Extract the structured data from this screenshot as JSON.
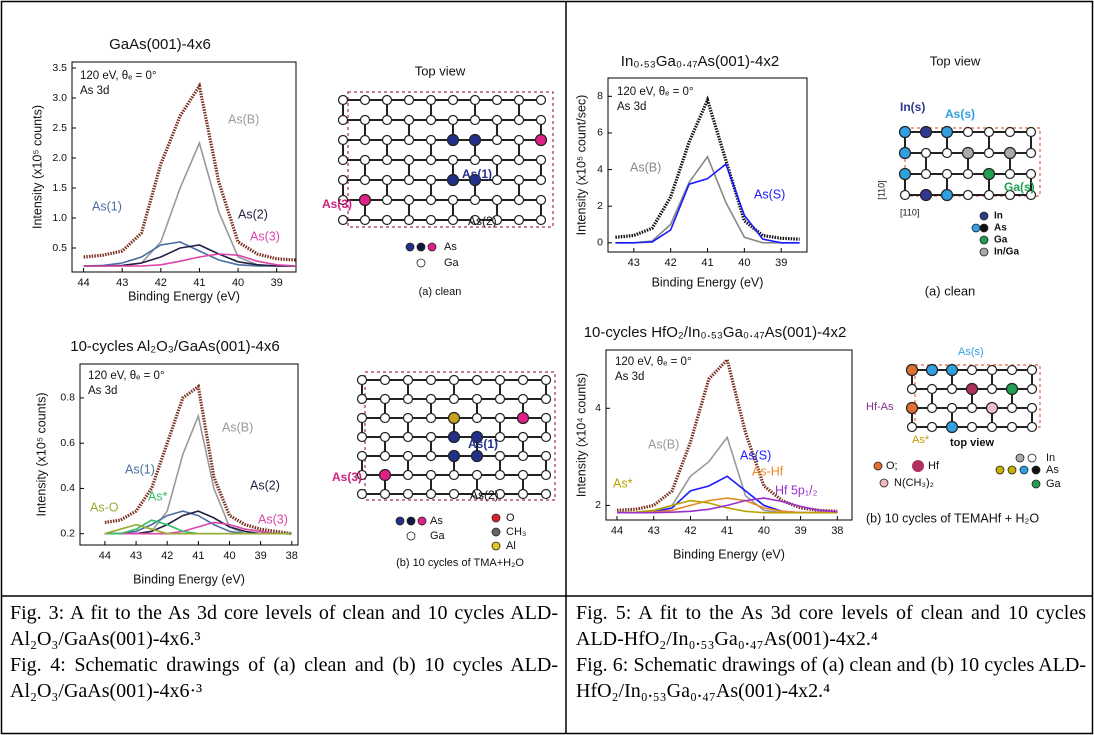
{
  "chart_data": [
    {
      "type": "line",
      "title": "GaAs(001)-4x6",
      "annotations": [
        "120 eV, θₑ = 0°",
        "As 3d"
      ],
      "x_label": "Binding Energy (eV)",
      "y_label": "Intensity (x10⁵ counts)",
      "xlim": [
        44.3,
        38.5
      ],
      "xticks": [
        44,
        43,
        42,
        41,
        40,
        39
      ],
      "ylim": [
        0.1,
        3.6
      ],
      "yticks": [
        0.5,
        {
          "value": 1,
          "label": "1.0"
        },
        1.5,
        {
          "value": 2,
          "label": "2.0"
        },
        2.5,
        {
          "value": 3,
          "label": "3.0"
        },
        3.5
      ],
      "x": [
        44,
        43.5,
        43,
        42.5,
        42,
        41.5,
        41,
        40.5,
        40,
        39.5,
        39,
        38.5
      ],
      "series": [
        {
          "color": "#7b2e1e",
          "values": [
            0.35,
            0.38,
            0.45,
            0.75,
            1.9,
            2.7,
            3.2,
            1.6,
            0.6,
            0.4,
            0.32,
            0.3
          ]
        },
        {
          "name": "As(B)",
          "color": "#999999",
          "values": [
            0.2,
            0.2,
            0.2,
            0.25,
            0.6,
            1.5,
            2.25,
            1.1,
            0.35,
            0.22,
            0.2,
            0.2
          ]
        },
        {
          "name": "As(1)",
          "color": "#4a6fa5",
          "values": [
            0.2,
            0.21,
            0.25,
            0.35,
            0.55,
            0.6,
            0.45,
            0.3,
            0.22,
            0.2,
            0.2,
            0.2
          ]
        },
        {
          "name": "As(2)",
          "color": "#222244",
          "values": [
            0.2,
            0.2,
            0.21,
            0.25,
            0.35,
            0.5,
            0.55,
            0.4,
            0.27,
            0.22,
            0.2,
            0.2
          ]
        },
        {
          "name": "As(3)",
          "color": "#dd44aa",
          "values": [
            0.2,
            0.2,
            0.2,
            0.2,
            0.22,
            0.28,
            0.35,
            0.4,
            0.38,
            0.28,
            0.22,
            0.2
          ]
        }
      ]
    },
    {
      "type": "line",
      "title": "10-cycles Al₂O₃/GaAs(001)-4x6",
      "annotations": [
        "120 eV, θₑ = 0°",
        "As 3d"
      ],
      "x_label": "Binding Energy (eV)",
      "y_label": "Intensity (x10⁵ counts)",
      "xlim": [
        44.8,
        37.8
      ],
      "xticks": [
        44,
        43,
        42,
        41,
        40,
        39,
        38
      ],
      "ylim": [
        0.15,
        0.95
      ],
      "yticks": [
        0.2,
        0.4,
        0.6,
        0.8
      ],
      "x": [
        44,
        43.5,
        43,
        42.5,
        42,
        41.5,
        41,
        40.5,
        40,
        39.5,
        39,
        38.5,
        38
      ],
      "series": [
        {
          "color": "#7b2e1e",
          "values": [
            0.25,
            0.26,
            0.3,
            0.4,
            0.6,
            0.8,
            0.85,
            0.45,
            0.28,
            0.24,
            0.22,
            0.21,
            0.2
          ]
        },
        {
          "name": "As(B)",
          "color": "#999999",
          "values": [
            0.2,
            0.2,
            0.2,
            0.21,
            0.3,
            0.55,
            0.72,
            0.4,
            0.23,
            0.2,
            0.2,
            0.2,
            0.2
          ]
        },
        {
          "name": "As(1)",
          "color": "#4a6fa5",
          "values": [
            0.2,
            0.2,
            0.21,
            0.24,
            0.28,
            0.3,
            0.28,
            0.24,
            0.21,
            0.2,
            0.2,
            0.2,
            0.2
          ]
        },
        {
          "name": "As(2)",
          "color": "#222244",
          "values": [
            0.2,
            0.2,
            0.2,
            0.21,
            0.24,
            0.28,
            0.3,
            0.27,
            0.23,
            0.21,
            0.2,
            0.2,
            0.2
          ]
        },
        {
          "name": "As(3)",
          "color": "#dd44aa",
          "values": [
            0.2,
            0.2,
            0.2,
            0.2,
            0.2,
            0.21,
            0.23,
            0.25,
            0.24,
            0.22,
            0.21,
            0.2,
            0.2
          ]
        },
        {
          "name": "As*",
          "color": "#33bb66",
          "values": [
            0.2,
            0.2,
            0.22,
            0.26,
            0.24,
            0.21,
            0.2,
            0.2,
            0.2,
            0.2,
            0.2,
            0.2,
            0.2
          ]
        },
        {
          "name": "As-O",
          "color": "#99aa33",
          "values": [
            0.2,
            0.22,
            0.24,
            0.22,
            0.2,
            0.2,
            0.2,
            0.2,
            0.2,
            0.2,
            0.2,
            0.2,
            0.2
          ]
        }
      ]
    },
    {
      "type": "line",
      "title": "In₀.₅₃Ga₀.₄₇As(001)-4x2",
      "annotations": [
        "120 eV, θₑ = 0°",
        "As 3d"
      ],
      "x_label": "Binding Energy (eV)",
      "y_label": "Intensity (x10⁵ count/sec)",
      "xlim": [
        43.7,
        38.3
      ],
      "xticks": [
        43,
        42,
        41,
        40,
        39
      ],
      "ylim": [
        -0.5,
        9
      ],
      "yticks": [
        0,
        2,
        4,
        6,
        8
      ],
      "x": [
        43.5,
        43,
        42.5,
        42,
        41.5,
        41,
        40.5,
        40,
        39.5,
        39,
        38.5
      ],
      "series": [
        {
          "color": "#111111",
          "values": [
            0.3,
            0.4,
            0.8,
            2.5,
            5.5,
            7.8,
            4.5,
            1.2,
            0.4,
            0.25,
            0.2
          ]
        },
        {
          "name": "As(B)",
          "color": "#888888",
          "values": [
            0,
            0,
            0.1,
            1,
            3.3,
            4.7,
            2.2,
            0.3,
            0,
            0,
            0
          ]
        },
        {
          "name": "As(S)",
          "color": "#1a1aff",
          "values": [
            0,
            0,
            0.05,
            0.7,
            3.2,
            3.5,
            4.3,
            1.5,
            0.2,
            0,
            0
          ]
        }
      ]
    },
    {
      "type": "line",
      "title": "10-cycles HfO₂/In₀.₅₃Ga₀.₄₇As(001)-4x2",
      "annotations": [
        "120 eV, θₑ = 0°",
        "As 3d"
      ],
      "x_label": "Binding Energy (eV)",
      "y_label": "Intensity (x10⁴ counts)",
      "xlim": [
        44.3,
        37.6
      ],
      "xticks": [
        44,
        43,
        42,
        41,
        40,
        39,
        38
      ],
      "ylim": [
        1.7,
        5.2
      ],
      "yticks": [
        2,
        4
      ],
      "x": [
        44,
        43.5,
        43,
        42.5,
        42,
        41.5,
        41,
        40.5,
        40,
        39.5,
        39,
        38.5,
        38
      ],
      "series": [
        {
          "color": "#7b2e1e",
          "values": [
            1.9,
            1.92,
            2.0,
            2.3,
            3.3,
            4.6,
            5.0,
            3.5,
            2.4,
            2.1,
            1.95,
            1.9,
            1.88
          ]
        },
        {
          "name": "As(B)",
          "color": "#999999",
          "values": [
            1.85,
            1.85,
            1.87,
            2.0,
            2.6,
            2.9,
            3.4,
            2.2,
            1.9,
            1.85,
            1.85,
            1.85,
            1.85
          ]
        },
        {
          "name": "As(S)",
          "color": "#1a1aff",
          "values": [
            1.85,
            1.85,
            1.86,
            1.95,
            2.3,
            2.4,
            2.6,
            2.3,
            2.0,
            1.88,
            1.85,
            1.85,
            1.85
          ]
        },
        {
          "name": "As-Hf",
          "color": "#e8892a",
          "values": [
            1.85,
            1.85,
            1.86,
            1.9,
            2.0,
            2.1,
            2.15,
            2.1,
            1.95,
            1.88,
            1.85,
            1.85,
            1.85
          ]
        },
        {
          "name": "As*",
          "color": "#b8a000",
          "values": [
            1.85,
            1.86,
            1.9,
            2.0,
            2.1,
            2.05,
            1.95,
            1.88,
            1.85,
            1.85,
            1.85,
            1.85,
            1.85
          ]
        },
        {
          "name": "Hf 5p₁/₂",
          "color": "#9b30d0",
          "values": [
            1.85,
            1.85,
            1.85,
            1.86,
            1.88,
            1.92,
            2.0,
            2.1,
            2.15,
            2.08,
            1.98,
            1.9,
            1.87
          ]
        }
      ]
    }
  ],
  "diagrams": [
    {
      "title": "Top view",
      "labels": [
        "As(1)",
        "As(2)",
        "As(3)"
      ],
      "legend": [
        "As",
        "Ga"
      ],
      "caption": "(a) clean"
    },
    {
      "labels": [
        "As(1)",
        "As(2)",
        "As(3)"
      ],
      "legend": [
        "As",
        "Ga",
        "O",
        "CH₃",
        "Al"
      ],
      "caption": "(b) 10 cycles of TMA+H₂O"
    },
    {
      "title": "Top view",
      "labels": [
        "In(s)",
        "As(s)",
        "Ga(s)",
        "[110]",
        "[110]"
      ],
      "legend": [
        "In",
        "As",
        "Ga",
        "In/Ga"
      ],
      "caption": "(a) clean"
    },
    {
      "labels": [
        "As(s)",
        "Hf-As",
        "As*",
        "top view"
      ],
      "legend": [
        "O;",
        "Hf",
        "N(CH₃)₂",
        "In",
        "As",
        "Ga"
      ],
      "caption": "(b) 10 cycles of TEMAHf + H₂O"
    }
  ],
  "captions": [
    [
      "Fig. 3: A fit to the As 3d core levels of clean and 10 cycles ALD-Al₂O₃/GaAs(001)-4x6.³",
      "Fig. 4: Schematic drawings of (a) clean and (b) 10 cycles ALD- Al₂O₃/GaAs(001)-4x6·³"
    ],
    [
      "Fig. 5: A fit to the As 3d core levels of clean and 10 cycles ALD-HfO₂/In₀.₅₃Ga₀.₄₇As(001)-4x2.⁴",
      "Fig. 6: Schematic drawings of (a) clean and (b) 10 cycles ALD-HfO₂/In₀.₅₃Ga₀.₄₇As(001)-4x2.⁴"
    ]
  ]
}
